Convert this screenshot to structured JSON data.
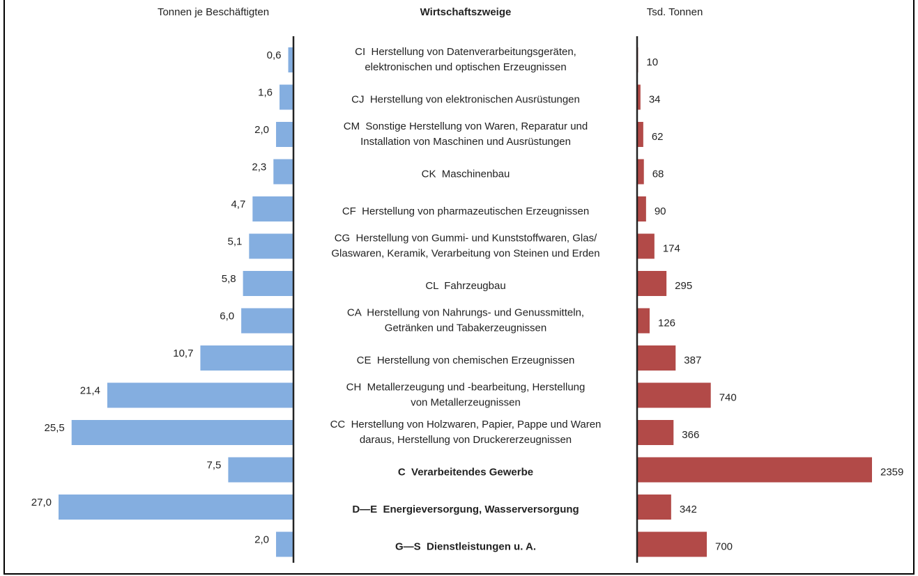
{
  "chart_data": {
    "type": "butterfly",
    "category_title": "Wirtschaftszweige",
    "categories": [
      [
        "CI  Herstellung von Datenverarbeitungsgeräten,",
        "elektronischen und optischen Erzeugnissen"
      ],
      [
        "CJ  Herstellung von elektronischen Ausrüstungen"
      ],
      [
        "CM  Sonstige Herstellung von Waren, Reparatur und",
        "Installation von Maschinen und Ausrüstungen"
      ],
      [
        "CK  Maschinenbau"
      ],
      [
        "CF  Herstellung von pharmazeutischen Erzeugnissen"
      ],
      [
        "CG  Herstellung von Gummi- und Kunststoffwaren, Glas/",
        "Glaswaren, Keramik, Verarbeitung von Steinen und Erden"
      ],
      [
        "CL  Fahrzeugbau"
      ],
      [
        "CA  Herstellung von Nahrungs- und Genussmitteln,",
        "Getränken und Tabakerzeugnissen"
      ],
      [
        "CE  Herstellung von chemischen Erzeugnissen"
      ],
      [
        "CH  Metallerzeugung und -bearbeitung, Herstellung",
        "von Metallerzeugnissen"
      ],
      [
        "CC  Herstellung von Holzwaren, Papier, Pappe und Waren",
        "daraus, Herstellung von Druckererzeugnissen"
      ],
      [
        "C  Verarbeitendes Gewerbe"
      ],
      [
        "D—E  Energieversorgung, Wasserversorgung"
      ],
      [
        "G—S  Dienstleistungen u. A."
      ]
    ],
    "bold": [
      false,
      false,
      false,
      false,
      false,
      false,
      false,
      false,
      false,
      false,
      false,
      true,
      true,
      true
    ],
    "series": [
      {
        "name": "Tonnen je Beschäftigten",
        "color": "#84aee0",
        "side": "left",
        "values": [
          0.6,
          1.6,
          2.0,
          2.3,
          4.7,
          5.1,
          5.8,
          6.0,
          10.7,
          21.4,
          25.5,
          7.5,
          27.0,
          2.0
        ],
        "value_labels": [
          "0,6",
          "1,6",
          "2,0",
          "2,3",
          "4,7",
          "5,1",
          "5,8",
          "6,0",
          "10,7",
          "21,4",
          "25,5",
          "7,5",
          "27,0",
          "2,0"
        ]
      },
      {
        "name": "Tsd. Tonnen",
        "color": "#b24a48",
        "side": "right",
        "values": [
          10,
          34,
          62,
          68,
          90,
          174,
          295,
          126,
          387,
          740,
          366,
          2359,
          342,
          700
        ]
      }
    ]
  }
}
